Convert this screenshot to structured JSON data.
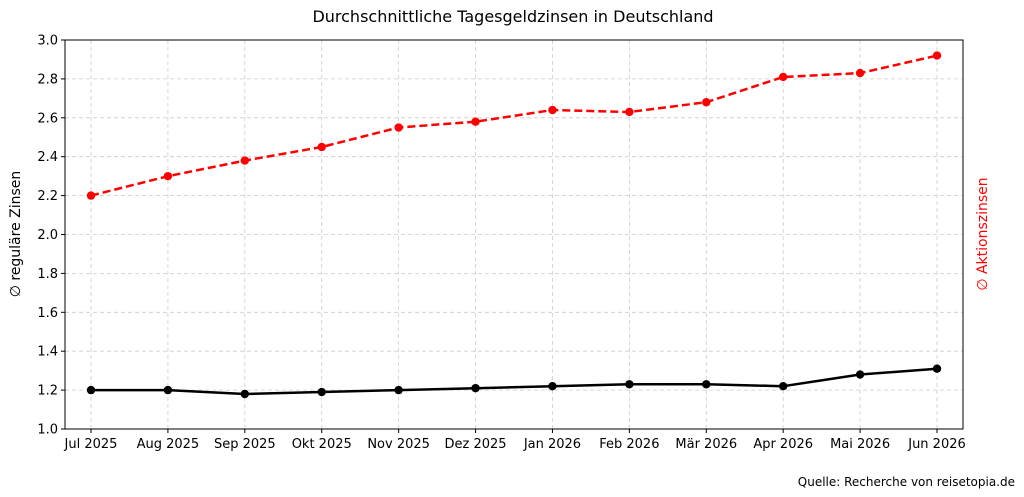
{
  "chart_data": {
    "type": "line",
    "title": "Durchschnittliche Tagesgeldzinsen in Deutschland",
    "ylabel_left": "∅ reguläre Zinsen",
    "ylabel_right": "∅ Aktionszinsen",
    "source": "Quelle: Recherche von reisetopia.de",
    "ylim": [
      1.0,
      3.0
    ],
    "yticks": [
      "1.0",
      "1.2",
      "1.4",
      "1.6",
      "1.8",
      "2.0",
      "2.2",
      "2.4",
      "2.6",
      "2.8",
      "3.0"
    ],
    "grid": true,
    "categories": [
      "Jul 2025",
      "Aug 2025",
      "Sep 2025",
      "Okt 2025",
      "Nov 2025",
      "Dez 2025",
      "Jan 2026",
      "Feb 2026",
      "Mär 2026",
      "Apr 2026",
      "Mai 2026",
      "Jun 2026"
    ],
    "series": [
      {
        "color": "#000000",
        "style": "solid",
        "values": [
          1.2,
          1.2,
          1.18,
          1.19,
          1.2,
          1.21,
          1.22,
          1.23,
          1.23,
          1.22,
          1.28,
          1.31
        ]
      },
      {
        "color": "#ff0000",
        "style": "dashed",
        "values": [
          2.2,
          2.3,
          2.38,
          2.45,
          2.55,
          2.58,
          2.64,
          2.63,
          2.68,
          2.81,
          2.83,
          2.92
        ]
      }
    ]
  }
}
